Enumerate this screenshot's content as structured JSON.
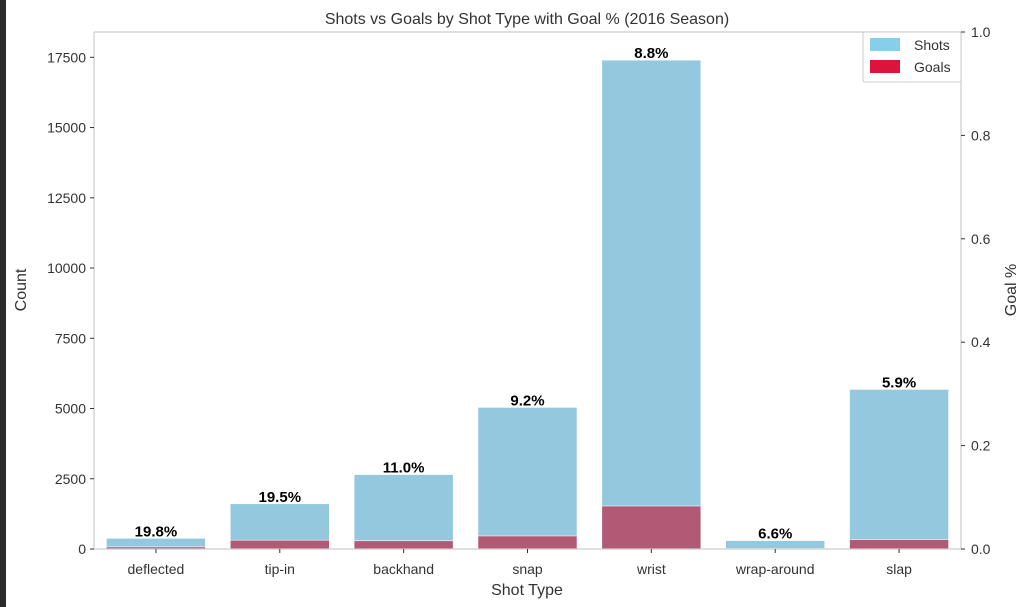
{
  "chart_data": {
    "type": "bar",
    "title": "Shots vs Goals by Shot Type with Goal % (2016 Season)",
    "xlabel": "Shot Type",
    "ylabel": "Count",
    "y2label": "Goal %",
    "categories": [
      "deflected",
      "tip-in",
      "backhand",
      "snap",
      "wrist",
      "wrap-around",
      "slap"
    ],
    "series": [
      {
        "name": "Shots",
        "color": "#87ceeb",
        "values": [
          380,
          1610,
          2650,
          5040,
          17400,
          300,
          5680
        ]
      },
      {
        "name": "Goals",
        "color": "#dc143c",
        "values": [
          75,
          314,
          292,
          464,
          1531,
          20,
          335
        ]
      }
    ],
    "goal_pct_labels": [
      "19.8%",
      "19.5%",
      "11.0%",
      "9.2%",
      "8.8%",
      "6.6%",
      "5.9%"
    ],
    "ylim": [
      0,
      18400
    ],
    "yticks": [
      0,
      2500,
      5000,
      7500,
      10000,
      12500,
      15000,
      17500
    ],
    "y2lim": [
      0,
      1.0
    ],
    "y2ticks": [
      "0.0",
      "0.2",
      "0.4",
      "0.6",
      "0.8",
      "1.0"
    ],
    "legend_position": "top-right",
    "grid": false
  }
}
